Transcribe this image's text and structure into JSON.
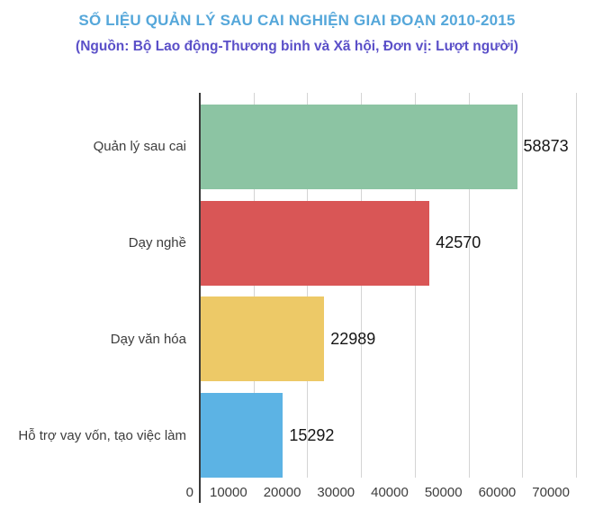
{
  "header": {
    "title": "SỐ LIỆU QUẢN LÝ SAU CAI NGHIỆN GIAI ĐOẠN 2010-2015",
    "subtitle": "(Nguồn: Bộ Lao động-Thương binh và Xã hội, Đơn vị: Lượt người)"
  },
  "chart_data": {
    "type": "bar",
    "orientation": "horizontal",
    "title": "SỐ LIỆU QUẢN LÝ SAU CAI NGHIỆN GIAI ĐOẠN 2010-2015",
    "subtitle": "(Nguồn: Bộ Lao động-Thương binh và Xã hội, Đơn vị: Lượt người)",
    "source": "Bộ Lao động-Thương binh và Xã hội",
    "unit": "Lượt người",
    "categories": [
      "Quản lý sau cai",
      "Dạy nghề",
      "Dạy văn hóa",
      "Hỗ trợ vay vốn, tạo việc làm"
    ],
    "values": [
      58873,
      42570,
      22989,
      15292
    ],
    "value_labels": [
      "58873",
      "42570",
      "22989",
      "15292"
    ],
    "bar_colors": [
      "#8cc4a3",
      "#d95656",
      "#edc967",
      "#5cb3e4"
    ],
    "xlim": [
      0,
      70000
    ],
    "x_ticks": [
      0,
      10000,
      20000,
      30000,
      40000,
      50000,
      60000,
      70000
    ],
    "x_tick_labels": [
      "0",
      "10000",
      "20000",
      "30000",
      "40000",
      "50000",
      "60000",
      "70000"
    ],
    "grid": true,
    "legend": false
  },
  "colors": {
    "title": "#55a7da",
    "subtitle": "#5a4fc8",
    "gridline": "#d4d4d4",
    "axis": "#3a3a3a",
    "category_label": "#3d3d3d",
    "tick_label": "#3d3d3d",
    "value_label": "#151515",
    "background": "#ffffff"
  }
}
